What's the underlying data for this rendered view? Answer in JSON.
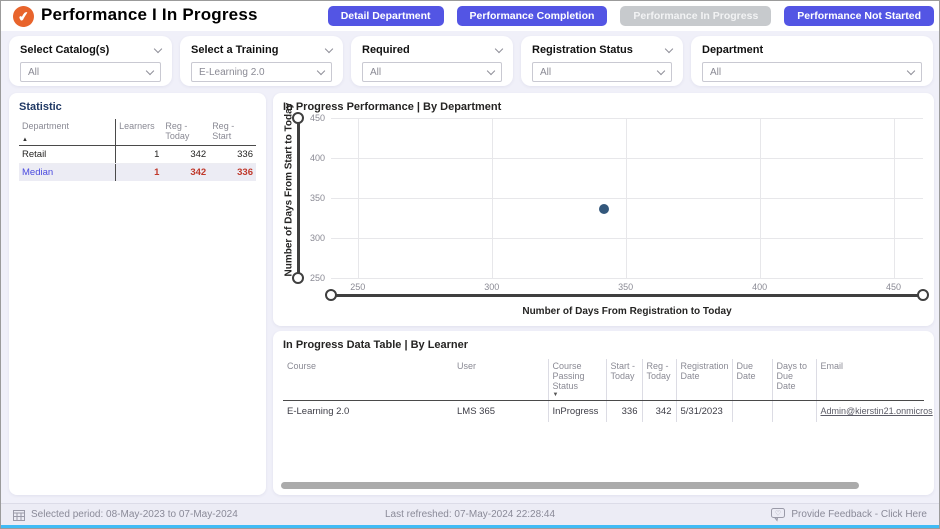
{
  "app": {
    "title": "Performance I In Progress",
    "logo_icon": "✔"
  },
  "nav_buttons": [
    {
      "label": "Detail Department",
      "enabled": true
    },
    {
      "label": "Performance Completion",
      "enabled": true
    },
    {
      "label": "Performance In Progress",
      "enabled": false
    },
    {
      "label": "Performance Not Started",
      "enabled": true
    }
  ],
  "filters": [
    {
      "label": "Select Catalog(s)",
      "value": "All"
    },
    {
      "label": "Select a Training",
      "value": "E-Learning 2.0"
    },
    {
      "label": "Required",
      "value": "All"
    },
    {
      "label": "Registration Status",
      "value": "All"
    },
    {
      "label": "Department",
      "value": "All"
    }
  ],
  "statistic": {
    "title": "Statistic",
    "columns": {
      "department": "Department",
      "learners": "Learners",
      "reg_today": "Reg - Today",
      "reg_start": "Reg - Start"
    },
    "sort_icon": "▲",
    "rows": [
      {
        "department": "Retail",
        "learners": "1",
        "reg_today": "342",
        "reg_start": "336"
      },
      {
        "department": "Median",
        "learners": "1",
        "reg_today": "342",
        "reg_start": "336"
      }
    ]
  },
  "chart_panel": {
    "title": "In Progress Performance | By Department"
  },
  "chart_data": {
    "type": "scatter",
    "title": "In Progress Performance | By Department",
    "xlabel": "Number of Days From Registration to Today",
    "ylabel": "Number of Days From Start to Today",
    "x_ticks": [
      250,
      300,
      350,
      400,
      450
    ],
    "y_ticks": [
      250,
      300,
      350,
      400,
      450
    ],
    "xlim": [
      240,
      461
    ],
    "ylim": [
      250,
      450
    ],
    "grid": true,
    "legend": false,
    "point_color": "#33577B",
    "points": [
      {
        "x": 342,
        "y": 336
      }
    ]
  },
  "data_table": {
    "title": "In Progress Data Table | By Learner",
    "columns": {
      "course": "Course",
      "user": "User",
      "status": "Course Passing Status",
      "start_today": "Start - Today",
      "reg_today": "Reg - Today",
      "reg_date": "Registration Date",
      "due_date": "Due Date",
      "days_to_due": "Days to Due Date",
      "email": "Email"
    },
    "sort_icon": "▼",
    "rows": [
      {
        "course": "E-Learning 2.0",
        "user": "LMS 365",
        "status": "InProgress",
        "start_today": "336",
        "reg_today": "342",
        "reg_date": "5/31/2023",
        "due_date": "",
        "days_to_due": "",
        "email": "Admin@kierstin21.onmicros"
      }
    ]
  },
  "footer": {
    "selected_period": "Selected period: 08-May-2023 to 07-May-2024",
    "last_refreshed": "Last refreshed: 07-May-2024 22:28:44",
    "feedback": "Provide Feedback - Click Here"
  },
  "colors": {
    "accent_blue": "#5355E4",
    "disabled_gray": "#C7CACD",
    "logo_orange": "#E8642C",
    "median_label": "#4A4ADF",
    "median_value": "#C0392B",
    "page_bg": "#F0F0F9"
  }
}
